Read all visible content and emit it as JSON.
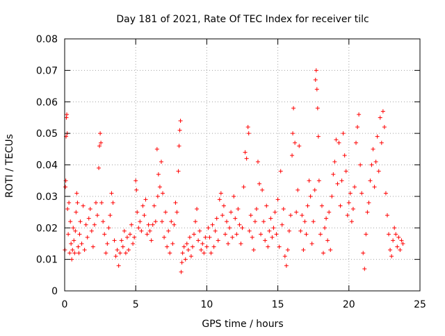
{
  "chart_data": {
    "type": "scatter",
    "title": "Day 181 of 2021, Rate Of TEC Index for receiver tilc",
    "xlabel": "GPS time / hours",
    "ylabel": "ROTI / TECUs",
    "xlim": [
      0,
      25
    ],
    "ylim": [
      0,
      0.08
    ],
    "x_ticks": [
      0,
      5,
      10,
      15,
      20,
      25
    ],
    "y_ticks": [
      0,
      0.01,
      0.02,
      0.03,
      0.04,
      0.05,
      0.06,
      0.07,
      0.08
    ],
    "x_tick_labels": [
      "0",
      "5",
      "10",
      "15",
      "20",
      "25"
    ],
    "y_tick_labels": [
      "0",
      "0.01",
      "0.02",
      "0.03",
      "0.04",
      "0.05",
      "0.06",
      "0.07",
      "0.08"
    ],
    "grid": true,
    "marker": "+",
    "marker_color": "#ff0000",
    "series": [
      {
        "points": [
          [
            0.02,
            0.013
          ],
          [
            0.05,
            0.033
          ],
          [
            0.08,
            0.035
          ],
          [
            0.1,
            0.049
          ],
          [
            0.12,
            0.055
          ],
          [
            0.15,
            0.056
          ],
          [
            0.18,
            0.05
          ],
          [
            0.2,
            0.026
          ],
          [
            0.25,
            0.018
          ],
          [
            0.3,
            0.028
          ],
          [
            0.35,
            0.012
          ],
          [
            0.4,
            0.022
          ],
          [
            0.45,
            0.015
          ],
          [
            0.5,
            0.01
          ],
          [
            0.55,
            0.013
          ],
          [
            0.6,
            0.02
          ],
          [
            0.65,
            0.016
          ],
          [
            0.7,
            0.012
          ],
          [
            0.75,
            0.019
          ],
          [
            0.8,
            0.025
          ],
          [
            0.85,
            0.031
          ],
          [
            0.9,
            0.028
          ],
          [
            0.95,
            0.014
          ],
          [
            1.0,
            0.012
          ],
          [
            1.05,
            0.018
          ],
          [
            1.1,
            0.022
          ],
          [
            1.2,
            0.015
          ],
          [
            1.3,
            0.027
          ],
          [
            1.4,
            0.013
          ],
          [
            1.5,
            0.021
          ],
          [
            1.6,
            0.017
          ],
          [
            1.7,
            0.023
          ],
          [
            1.8,
            0.026
          ],
          [
            1.9,
            0.019
          ],
          [
            2.0,
            0.014
          ],
          [
            2.1,
            0.021
          ],
          [
            2.2,
            0.028
          ],
          [
            2.3,
            0.024
          ],
          [
            2.4,
            0.039
          ],
          [
            2.45,
            0.046
          ],
          [
            2.5,
            0.05
          ],
          [
            2.55,
            0.047
          ],
          [
            2.6,
            0.028
          ],
          [
            2.7,
            0.022
          ],
          [
            2.8,
            0.018
          ],
          [
            2.9,
            0.012
          ],
          [
            3.0,
            0.015
          ],
          [
            3.1,
            0.02
          ],
          [
            3.2,
            0.024
          ],
          [
            3.3,
            0.031
          ],
          [
            3.4,
            0.028
          ],
          [
            3.5,
            0.016
          ],
          [
            3.6,
            0.011
          ],
          [
            3.7,
            0.013
          ],
          [
            3.8,
            0.008
          ],
          [
            3.9,
            0.012
          ],
          [
            4.0,
            0.016
          ],
          [
            4.1,
            0.014
          ],
          [
            4.2,
            0.019
          ],
          [
            4.3,
            0.012
          ],
          [
            4.4,
            0.017
          ],
          [
            4.5,
            0.013
          ],
          [
            4.6,
            0.018
          ],
          [
            4.7,
            0.021
          ],
          [
            4.8,
            0.015
          ],
          [
            4.9,
            0.017
          ],
          [
            5.0,
            0.035
          ],
          [
            5.05,
            0.032
          ],
          [
            5.1,
            0.025
          ],
          [
            5.2,
            0.02
          ],
          [
            5.3,
            0.022
          ],
          [
            5.4,
            0.019
          ],
          [
            5.5,
            0.027
          ],
          [
            5.6,
            0.024
          ],
          [
            5.7,
            0.029
          ],
          [
            5.8,
            0.018
          ],
          [
            5.9,
            0.021
          ],
          [
            6.0,
            0.019
          ],
          [
            6.1,
            0.016
          ],
          [
            6.2,
            0.021
          ],
          [
            6.3,
            0.027
          ],
          [
            6.4,
            0.022
          ],
          [
            6.5,
            0.045
          ],
          [
            6.55,
            0.03
          ],
          [
            6.6,
            0.037
          ],
          [
            6.7,
            0.033
          ],
          [
            6.8,
            0.041
          ],
          [
            6.85,
            0.022
          ],
          [
            6.9,
            0.031
          ],
          [
            7.0,
            0.017
          ],
          [
            7.1,
            0.025
          ],
          [
            7.2,
            0.014
          ],
          [
            7.3,
            0.019
          ],
          [
            7.4,
            0.012
          ],
          [
            7.5,
            0.022
          ],
          [
            7.6,
            0.015
          ],
          [
            7.7,
            0.021
          ],
          [
            7.8,
            0.028
          ],
          [
            7.9,
            0.025
          ],
          [
            8.0,
            0.038
          ],
          [
            8.05,
            0.046
          ],
          [
            8.1,
            0.051
          ],
          [
            8.15,
            0.054
          ],
          [
            8.2,
            0.006
          ],
          [
            8.25,
            0.009
          ],
          [
            8.3,
            0.012
          ],
          [
            8.4,
            0.014
          ],
          [
            8.5,
            0.01
          ],
          [
            8.6,
            0.015
          ],
          [
            8.7,
            0.013
          ],
          [
            8.8,
            0.017
          ],
          [
            8.9,
            0.011
          ],
          [
            9.0,
            0.014
          ],
          [
            9.1,
            0.018
          ],
          [
            9.2,
            0.022
          ],
          [
            9.3,
            0.026
          ],
          [
            9.4,
            0.016
          ],
          [
            9.5,
            0.019
          ],
          [
            9.6,
            0.013
          ],
          [
            9.7,
            0.015
          ],
          [
            9.8,
            0.012
          ],
          [
            9.9,
            0.017
          ],
          [
            10.0,
            0.014
          ],
          [
            10.1,
            0.02
          ],
          [
            10.2,
            0.017
          ],
          [
            10.3,
            0.012
          ],
          [
            10.4,
            0.021
          ],
          [
            10.5,
            0.014
          ],
          [
            10.6,
            0.019
          ],
          [
            10.7,
            0.023
          ],
          [
            10.8,
            0.016
          ],
          [
            10.9,
            0.029
          ],
          [
            11.0,
            0.031
          ],
          [
            11.1,
            0.024
          ],
          [
            11.2,
            0.027
          ],
          [
            11.3,
            0.018
          ],
          [
            11.4,
            0.022
          ],
          [
            11.5,
            0.015
          ],
          [
            11.6,
            0.02
          ],
          [
            11.7,
            0.025
          ],
          [
            11.8,
            0.017
          ],
          [
            11.9,
            0.03
          ],
          [
            12.0,
            0.023
          ],
          [
            12.1,
            0.018
          ],
          [
            12.2,
            0.026
          ],
          [
            12.3,
            0.021
          ],
          [
            12.4,
            0.015
          ],
          [
            12.5,
            0.02
          ],
          [
            12.6,
            0.033
          ],
          [
            12.7,
            0.044
          ],
          [
            12.8,
            0.042
          ],
          [
            12.9,
            0.052
          ],
          [
            12.95,
            0.05
          ],
          [
            13.0,
            0.019
          ],
          [
            13.1,
            0.024
          ],
          [
            13.2,
            0.017
          ],
          [
            13.3,
            0.013
          ],
          [
            13.4,
            0.022
          ],
          [
            13.5,
            0.026
          ],
          [
            13.6,
            0.041
          ],
          [
            13.7,
            0.034
          ],
          [
            13.8,
            0.018
          ],
          [
            13.9,
            0.032
          ],
          [
            14.0,
            0.022
          ],
          [
            14.1,
            0.016
          ],
          [
            14.2,
            0.027
          ],
          [
            14.3,
            0.014
          ],
          [
            14.4,
            0.019
          ],
          [
            14.5,
            0.023
          ],
          [
            14.6,
            0.017
          ],
          [
            14.7,
            0.02
          ],
          [
            14.8,
            0.025
          ],
          [
            14.9,
            0.018
          ],
          [
            15.0,
            0.029
          ],
          [
            15.1,
            0.014
          ],
          [
            15.2,
            0.038
          ],
          [
            15.3,
            0.021
          ],
          [
            15.4,
            0.026
          ],
          [
            15.5,
            0.011
          ],
          [
            15.6,
            0.008
          ],
          [
            15.7,
            0.013
          ],
          [
            15.8,
            0.019
          ],
          [
            15.9,
            0.024
          ],
          [
            16.0,
            0.043
          ],
          [
            16.05,
            0.05
          ],
          [
            16.1,
            0.058
          ],
          [
            16.2,
            0.047
          ],
          [
            16.3,
            0.025
          ],
          [
            16.4,
            0.032
          ],
          [
            16.5,
            0.046
          ],
          [
            16.6,
            0.019
          ],
          [
            16.7,
            0.024
          ],
          [
            16.8,
            0.013
          ],
          [
            16.9,
            0.022
          ],
          [
            17.0,
            0.018
          ],
          [
            17.1,
            0.027
          ],
          [
            17.2,
            0.035
          ],
          [
            17.3,
            0.03
          ],
          [
            17.4,
            0.015
          ],
          [
            17.5,
            0.022
          ],
          [
            17.6,
            0.032
          ],
          [
            17.65,
            0.067
          ],
          [
            17.7,
            0.07
          ],
          [
            17.75,
            0.064
          ],
          [
            17.8,
            0.058
          ],
          [
            17.85,
            0.049
          ],
          [
            17.9,
            0.035
          ],
          [
            18.0,
            0.018
          ],
          [
            18.1,
            0.027
          ],
          [
            18.2,
            0.012
          ],
          [
            18.3,
            0.02
          ],
          [
            18.4,
            0.023
          ],
          [
            18.5,
            0.016
          ],
          [
            18.6,
            0.025
          ],
          [
            18.7,
            0.013
          ],
          [
            18.8,
            0.03
          ],
          [
            18.9,
            0.037
          ],
          [
            19.0,
            0.041
          ],
          [
            19.1,
            0.048
          ],
          [
            19.2,
            0.034
          ],
          [
            19.3,
            0.047
          ],
          [
            19.4,
            0.027
          ],
          [
            19.5,
            0.035
          ],
          [
            19.6,
            0.05
          ],
          [
            19.7,
            0.043
          ],
          [
            19.8,
            0.038
          ],
          [
            19.9,
            0.024
          ],
          [
            20.0,
            0.028
          ],
          [
            20.1,
            0.031
          ],
          [
            20.2,
            0.022
          ],
          [
            20.3,
            0.026
          ],
          [
            20.4,
            0.033
          ],
          [
            20.5,
            0.047
          ],
          [
            20.6,
            0.052
          ],
          [
            20.7,
            0.056
          ],
          [
            20.8,
            0.04
          ],
          [
            20.9,
            0.031
          ],
          [
            21.0,
            0.012
          ],
          [
            21.1,
            0.007
          ],
          [
            21.2,
            0.018
          ],
          [
            21.3,
            0.025
          ],
          [
            21.4,
            0.028
          ],
          [
            21.5,
            0.035
          ],
          [
            21.6,
            0.04
          ],
          [
            21.7,
            0.045
          ],
          [
            21.8,
            0.033
          ],
          [
            21.9,
            0.041
          ],
          [
            22.0,
            0.049
          ],
          [
            22.1,
            0.038
          ],
          [
            22.2,
            0.055
          ],
          [
            22.3,
            0.047
          ],
          [
            22.4,
            0.057
          ],
          [
            22.5,
            0.052
          ],
          [
            22.6,
            0.031
          ],
          [
            22.7,
            0.024
          ],
          [
            22.8,
            0.018
          ],
          [
            22.9,
            0.013
          ],
          [
            23.0,
            0.011
          ],
          [
            23.1,
            0.016
          ],
          [
            23.2,
            0.02
          ],
          [
            23.3,
            0.018
          ],
          [
            23.4,
            0.014
          ],
          [
            23.5,
            0.017
          ],
          [
            23.6,
            0.013
          ],
          [
            23.7,
            0.016
          ],
          [
            23.8,
            0.015
          ]
        ]
      }
    ]
  }
}
